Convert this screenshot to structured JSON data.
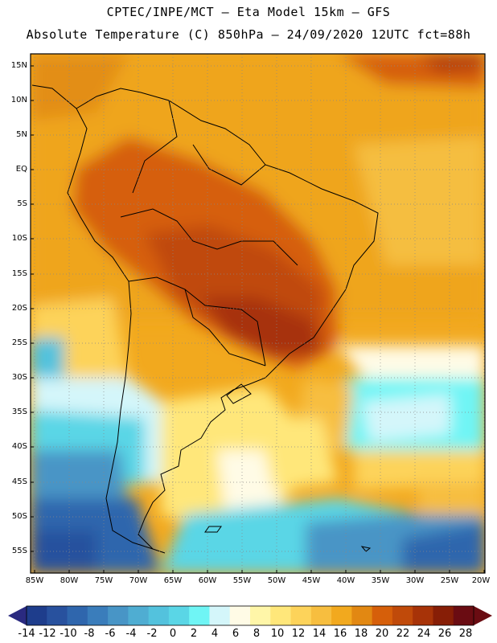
{
  "header": {
    "line1": "CPTEC/INPE/MCT –  Eta Model 15km – GFS",
    "line2": "Absolute Temperature (C) 850hPa – 24/09/2020 12UTC fct=88h"
  },
  "map": {
    "lat_labels": [
      "15N",
      "10N",
      "5N",
      "EQ",
      "5S",
      "10S",
      "15S",
      "20S",
      "25S",
      "30S",
      "35S",
      "40S",
      "45S",
      "50S",
      "55S"
    ],
    "lon_labels": [
      "85W",
      "80W",
      "75W",
      "70W",
      "65W",
      "60W",
      "55W",
      "50W",
      "45W",
      "40W",
      "35W",
      "30W",
      "25W",
      "20W"
    ],
    "gridlines": "dotted"
  },
  "colorbar": {
    "labels": [
      "-14",
      "-12",
      "-10",
      "-8",
      "-6",
      "-4",
      "-2",
      "0",
      "2",
      "4",
      "6",
      "8",
      "10",
      "12",
      "14",
      "16",
      "18",
      "20",
      "22",
      "24",
      "26",
      "28"
    ],
    "colors": [
      "#1e3d8c",
      "#28519e",
      "#2f66ad",
      "#3a7dbb",
      "#4895c6",
      "#4fadd2",
      "#53c2dd",
      "#5ad6e6",
      "#6ff5f5",
      "#d4f6fa",
      "#fffbe6",
      "#fff6a8",
      "#ffe77a",
      "#fdd35a",
      "#f7be3f",
      "#f2a91e",
      "#e28812",
      "#d65f0a",
      "#c04a0a",
      "#a73308",
      "#871e06",
      "#6a0c12"
    ],
    "low_arrow_color": "#2a2a80",
    "high_arrow_color": "#6a0c12"
  }
}
